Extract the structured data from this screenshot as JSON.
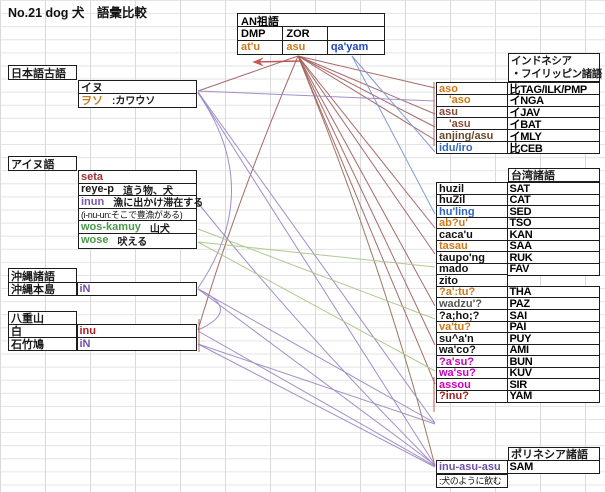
{
  "title": "No.21 dog 犬　語彙比較",
  "an_proto": {
    "header": "AN祖語",
    "cols": [
      "DMP",
      "ZOR",
      ""
    ],
    "values": [
      {
        "text": "at'u",
        "color": "#c87b1e"
      },
      {
        "text": "asu",
        "color": "#c87b1e"
      },
      {
        "text": "qa'yam",
        "color": "#2247bb"
      }
    ]
  },
  "japanese_old": {
    "label": "日本語古語",
    "rows": [
      {
        "word": "イヌ",
        "color": "#1a1a1a",
        "gloss": ""
      },
      {
        "word": "ヲソ",
        "color": "#c87b1e",
        "gloss": ":カワウソ"
      }
    ]
  },
  "ainu": {
    "label": "アイヌ語",
    "rows": [
      {
        "word": "seta",
        "color": "#a03030",
        "gloss": ""
      },
      {
        "word": "reye-p",
        "color": "#1a1a1a",
        "gloss": "這う物、犬"
      },
      {
        "word": "inun",
        "color": "#7858b0",
        "gloss": "漁に出かけ滞在する"
      },
      {
        "word": "(i-nu-un:そこで豊漁がある)",
        "color": "#111111",
        "gloss": "",
        "small": true
      },
      {
        "word": "wos-kamuy",
        "color": "#4a9a4a",
        "gloss": "山犬"
      },
      {
        "word": "wose",
        "color": "#4a9a4a",
        "gloss": "吠える"
      }
    ]
  },
  "okinawa": {
    "label": "沖縄諸語",
    "rows": [
      {
        "place": "沖縄本島",
        "word": "iN",
        "color": "#7050a8"
      }
    ]
  },
  "yaeyama": {
    "label": "八重山",
    "rows": [
      {
        "place": "白",
        "word": "inu",
        "color": "#b02020"
      },
      {
        "place": "石竹鳩",
        "word": "iN",
        "color": "#7050a8"
      }
    ]
  },
  "indonesia": {
    "header_line1": "インドネシア",
    "header_line2": "・フイリッピン諸語",
    "rows": [
      {
        "word": "aso",
        "color": "#d07818",
        "lang": "比TAG/ILK/PMP",
        "indent": false
      },
      {
        "word": "'aso",
        "color": "#d07818",
        "lang": "イNGA",
        "indent": true
      },
      {
        "word": "asu",
        "color": "#8a4a3a",
        "lang": "イJAV",
        "indent": false
      },
      {
        "word": "'asu",
        "color": "#8a4a3a",
        "lang": "イBAT",
        "indent": true
      },
      {
        "word": "anjing/asu",
        "color": "#6a4a2a",
        "lang": "イMLY",
        "indent": false
      },
      {
        "word": "idu/iro",
        "color": "#3068c0",
        "lang": "比CEB",
        "indent": false
      }
    ]
  },
  "taiwan": {
    "header": "台湾諸語",
    "rows": [
      {
        "word": "huzil",
        "color": "#111111",
        "lang": "SAT"
      },
      {
        "word": "huZil",
        "color": "#111111",
        "lang": "CAT"
      },
      {
        "word": "hu'ling",
        "color": "#3068c0",
        "lang": "SED"
      },
      {
        "word": "ab?u'",
        "color": "#d07818",
        "lang": "TSO"
      },
      {
        "word": "caca'u",
        "color": "#111111",
        "lang": "KAN"
      },
      {
        "word": "tasau",
        "color": "#d07818",
        "lang": "SAA"
      },
      {
        "word": "taupo'ng",
        "color": "#111111",
        "lang": "RUK"
      },
      {
        "word": "mado",
        "color": "#111111",
        "lang": "FAV"
      },
      {
        "word": "zito",
        "color": "#111111",
        "lang": ""
      },
      {
        "word": "?a':tu?",
        "color": "#d07818",
        "lang": "THA"
      },
      {
        "word": "wadzu'?",
        "color": "#555555",
        "lang": "PAZ"
      },
      {
        "word": "?a;ho;?",
        "color": "#111111",
        "lang": "SAI"
      },
      {
        "word": "va'tu?",
        "color": "#d07818",
        "lang": "PAI"
      },
      {
        "word": "su^a'n",
        "color": "#111111",
        "lang": "PUY"
      },
      {
        "word": "wa'co?",
        "color": "#111111",
        "lang": "AMI"
      },
      {
        "word": "?a'su?",
        "color": "#cc00bb",
        "lang": "BUN"
      },
      {
        "word": "wa'su?",
        "color": "#cc00bb",
        "lang": "KUV"
      },
      {
        "word": "assou",
        "color": "#cc00bb",
        "lang": "SIR"
      },
      {
        "word": "?inu?",
        "color": "#a02020",
        "lang": "YAM"
      }
    ]
  },
  "polynesia": {
    "header": "ポリネシア諸語",
    "rows": [
      {
        "word": "inu-asu-asu",
        "color": "#7050a8",
        "lang": "SAM"
      }
    ],
    "gloss": ":犬のように飲む"
  },
  "line_colors": {
    "darkred": "#a36262",
    "brown": "#9a7055",
    "blue": "#7b97cf",
    "purple": "#9d88c4",
    "green": "#a9c788",
    "red": "#c0504d"
  },
  "connections": [
    {
      "from": "AN:asu",
      "to": "JP:イヌ",
      "f": [
        298,
        56
      ],
      "t": [
        198,
        91
      ],
      "c": "darkred"
    },
    {
      "from": "AN:asu",
      "to": "ID:aso",
      "f": [
        298,
        56
      ],
      "t": [
        435,
        88
      ],
      "c": "darkred"
    },
    {
      "from": "AN:asu",
      "to": "ID:asu",
      "f": [
        298,
        56
      ],
      "t": [
        435,
        114
      ],
      "c": "darkred"
    },
    {
      "from": "AN:asu",
      "to": "ID:'asu",
      "f": [
        298,
        56
      ],
      "t": [
        435,
        127
      ],
      "c": "darkred"
    },
    {
      "from": "AN:asu",
      "to": "ID:anjing/asu",
      "f": [
        298,
        56
      ],
      "t": [
        435,
        140
      ],
      "c": "darkred"
    },
    {
      "from": "AN:asu",
      "to": "TW:ab?u'",
      "f": [
        298,
        56
      ],
      "t": [
        435,
        228
      ],
      "c": "darkred"
    },
    {
      "from": "AN:asu",
      "to": "TW:tasau",
      "f": [
        298,
        56
      ],
      "t": [
        435,
        254
      ],
      "c": "darkred"
    },
    {
      "from": "AN:asu",
      "to": "TW:?a':tu?",
      "f": [
        298,
        56
      ],
      "t": [
        435,
        306
      ],
      "c": "darkred"
    },
    {
      "from": "AN:asu",
      "to": "TW:va'tu?",
      "f": [
        298,
        56
      ],
      "t": [
        435,
        345
      ],
      "c": "darkred"
    },
    {
      "from": "AN:asu",
      "to": "TW:?a'su?",
      "f": [
        298,
        56
      ],
      "t": [
        435,
        384
      ],
      "c": "darkred"
    },
    {
      "from": "AN:asu",
      "to": "PN:inu-asu-asu",
      "f": [
        298,
        56
      ],
      "t": [
        435,
        466
      ],
      "c": "brown",
      "k": [
        385,
        270
      ]
    },
    {
      "from": "AN:asu",
      "to": "YAE:inu",
      "f": [
        298,
        56
      ],
      "t": [
        198,
        330
      ],
      "c": "darkred",
      "k": [
        235,
        205
      ]
    },
    {
      "from": "AN:asu",
      "to": "AN:at'u",
      "f": [
        301,
        61
      ],
      "t": [
        254,
        62
      ],
      "c": "red",
      "arrow": true
    },
    {
      "from": "AN:qa'yam",
      "to": "ID:idu/iro",
      "f": [
        352,
        56
      ],
      "t": [
        435,
        152
      ],
      "c": "blue"
    },
    {
      "from": "AN:qa'yam",
      "to": "TW:hu'ling",
      "f": [
        352,
        56
      ],
      "t": [
        435,
        214
      ],
      "c": "blue"
    },
    {
      "from": "JP:イヌ",
      "to": "ID:'aso",
      "f": [
        198,
        91
      ],
      "t": [
        435,
        101
      ],
      "c": "purple"
    },
    {
      "from": "JP:イヌ",
      "to": "OKI:iN",
      "f": [
        198,
        93
      ],
      "t": [
        198,
        288
      ],
      "c": "purple",
      "k": [
        265,
        190
      ]
    },
    {
      "from": "OKI:iN",
      "to": "YAE:inu",
      "f": [
        198,
        289
      ],
      "t": [
        198,
        330
      ],
      "c": "purple",
      "k": [
        243,
        310
      ]
    },
    {
      "from": "JP:イヌ",
      "to": "TW:?inu?",
      "f": [
        198,
        92
      ],
      "t": [
        435,
        423
      ],
      "c": "purple"
    },
    {
      "from": "JP:イヌ",
      "to": "PN:inu-asu-asu",
      "f": [
        198,
        92
      ],
      "t": [
        435,
        465
      ],
      "c": "purple"
    },
    {
      "from": "OKI:iN",
      "to": "TW:?inu?",
      "f": [
        198,
        289
      ],
      "t": [
        435,
        423
      ],
      "c": "purple"
    },
    {
      "from": "OKI:iN",
      "to": "PN:inu-asu-asu",
      "f": [
        198,
        289
      ],
      "t": [
        435,
        465
      ],
      "c": "purple"
    },
    {
      "from": "YAE:inu",
      "to": "PN:inu-asu-asu",
      "f": [
        198,
        331
      ],
      "t": [
        435,
        466
      ],
      "c": "purple"
    },
    {
      "from": "YAE:iN",
      "to": "TW:?inu?",
      "f": [
        198,
        344
      ],
      "t": [
        435,
        424
      ],
      "c": "purple"
    },
    {
      "from": "YAE:iN",
      "to": "PN:inu-asu-asu",
      "f": [
        198,
        344
      ],
      "t": [
        435,
        467
      ],
      "c": "purple"
    },
    {
      "from": "AINU:inun",
      "to": "PN:inu-asu-asu",
      "f": [
        198,
        203
      ],
      "t": [
        435,
        466
      ],
      "c": "purple",
      "k": [
        300,
        330
      ]
    },
    {
      "from": "AINU:wos-kamuy",
      "to": "TW:wadzu'?",
      "f": [
        198,
        229
      ],
      "t": [
        435,
        319
      ],
      "c": "green"
    },
    {
      "from": "AINU:wose",
      "to": "TW:taupo'ng",
      "f": [
        198,
        242
      ],
      "t": [
        435,
        267
      ],
      "c": "green"
    },
    {
      "from": "AINU:wose",
      "to": "TW:wa'co?",
      "f": [
        198,
        242
      ],
      "t": [
        435,
        371
      ],
      "c": "green"
    },
    {
      "from": "bracket-indonesian-words",
      "f": [
        434,
        82
      ],
      "t": [
        434,
        146
      ],
      "c": "darkred"
    },
    {
      "from": "bracket-taiwan-magenta-words",
      "f": [
        434,
        377
      ],
      "t": [
        434,
        412
      ],
      "c": "red"
    },
    {
      "from": "bracket-yaeyama-words",
      "f": [
        199,
        319
      ],
      "t": [
        199,
        352
      ],
      "c": "darkred"
    }
  ]
}
